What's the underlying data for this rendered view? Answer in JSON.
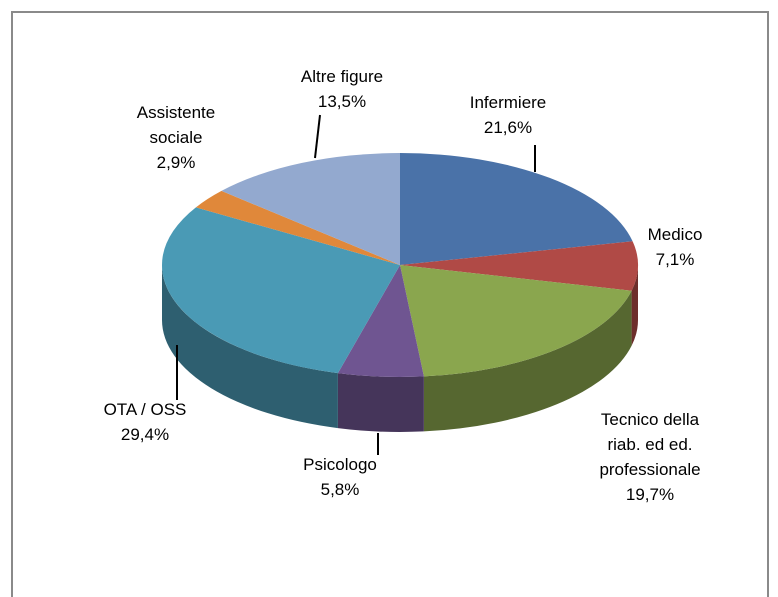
{
  "chart_data": {
    "type": "pie3d",
    "categories": [
      "Infermiere",
      "Medico",
      "Tecnico della\nriab. ed ed.\nprofessionale",
      "Psicologo",
      "OTA / OSS",
      "Assistente\nsociale",
      "Altre figure"
    ],
    "values": [
      21.6,
      7.1,
      19.7,
      5.8,
      29.4,
      2.9,
      13.5
    ],
    "value_labels": [
      "21,6%",
      "7,1%",
      "19,7%",
      "5,8%",
      "29,4%",
      "2,9%",
      "13,5%"
    ],
    "colors": [
      "#4a72a8",
      "#b04a46",
      "#8aa64e",
      "#6f5591",
      "#4a9ab5",
      "#e0883a",
      "#93a9cf"
    ]
  }
}
